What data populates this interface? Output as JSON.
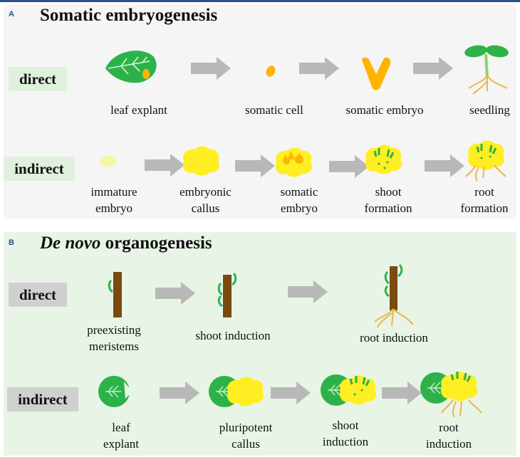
{
  "colors": {
    "leaf": "#2db24a",
    "stem": "#7a4a10",
    "callus": "#ffee22",
    "embryo": "#ffb400",
    "root": "#e8b74a",
    "arrow": "#b8b8b8"
  },
  "panelA": {
    "label": "A",
    "title": "Somatic embryogenesis",
    "direct": {
      "label": "direct",
      "steps": [
        "leaf explant",
        "somatic cell",
        "somatic embryo",
        "seedling"
      ]
    },
    "indirect": {
      "label": "indirect",
      "steps": [
        [
          "immature",
          "embryo"
        ],
        [
          "embryonic",
          "callus"
        ],
        [
          "somatic",
          "embryo"
        ],
        [
          "shoot",
          "formation"
        ],
        [
          "root",
          "formation"
        ]
      ]
    }
  },
  "panelB": {
    "label": "B",
    "title_italic": "De novo",
    "title_rest": " organogenesis",
    "direct": {
      "label": "direct",
      "steps": [
        [
          "preexisting",
          "meristems"
        ],
        [
          "shoot induction"
        ],
        [
          "root induction"
        ]
      ]
    },
    "indirect": {
      "label": "indirect",
      "steps": [
        [
          "leaf",
          "explant"
        ],
        [
          "pluripotent",
          "callus"
        ],
        [
          "shoot",
          "induction"
        ],
        [
          "root",
          "induction"
        ]
      ]
    }
  }
}
